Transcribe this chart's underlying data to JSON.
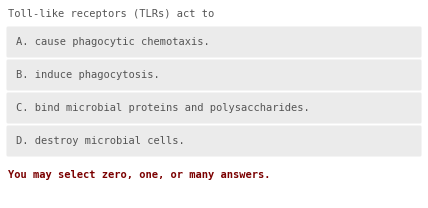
{
  "title": "Toll-like receptors (TLRs) act to",
  "title_color": "#555555",
  "title_fontsize": 7.5,
  "options": [
    "A. cause phagocytic chemotaxis.",
    "B. induce phagocytosis.",
    "C. bind microbial proteins and polysaccharides.",
    "D. destroy microbial cells."
  ],
  "option_fontsize": 7.5,
  "option_text_color": "#555555",
  "option_bg_color": "#ebebeb",
  "footer": "You may select zero, one, or many answers.",
  "footer_color": "#7b0000",
  "footer_fontsize": 7.5,
  "bg_color": "#ffffff",
  "fig_width": 4.28,
  "fig_height": 2.08,
  "dpi": 100
}
